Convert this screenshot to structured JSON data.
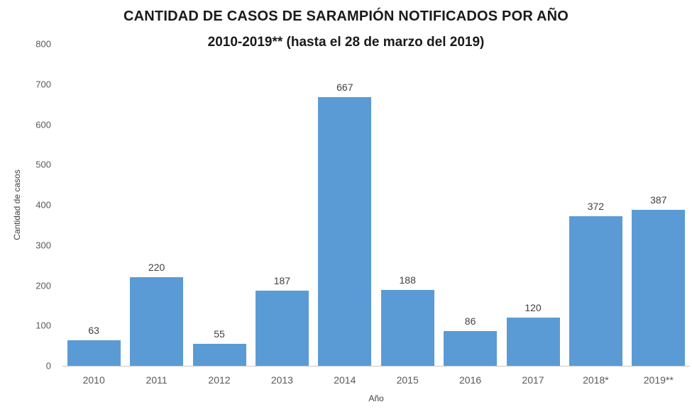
{
  "chart_data": {
    "type": "bar",
    "title": "CANTIDAD DE CASOS DE SARAMPIÓN NOTIFICADOS POR AÑO",
    "subtitle": "2010-2019** (hasta el 28 de marzo del 2019)",
    "categories": [
      "2010",
      "2011",
      "2012",
      "2013",
      "2014",
      "2015",
      "2016",
      "2017",
      "2018*",
      "2019**"
    ],
    "values": [
      63,
      220,
      55,
      187,
      667,
      188,
      86,
      120,
      372,
      387
    ],
    "xlabel": "Año",
    "ylabel": "Cantidad de casos",
    "ylim": [
      0,
      800
    ],
    "yticks": [
      0,
      100,
      200,
      300,
      400,
      500,
      600,
      700,
      800
    ],
    "bar_color": "#5b9bd5",
    "grid": false,
    "legend": false,
    "tick_color": "#595959",
    "label_color": "#404040"
  }
}
